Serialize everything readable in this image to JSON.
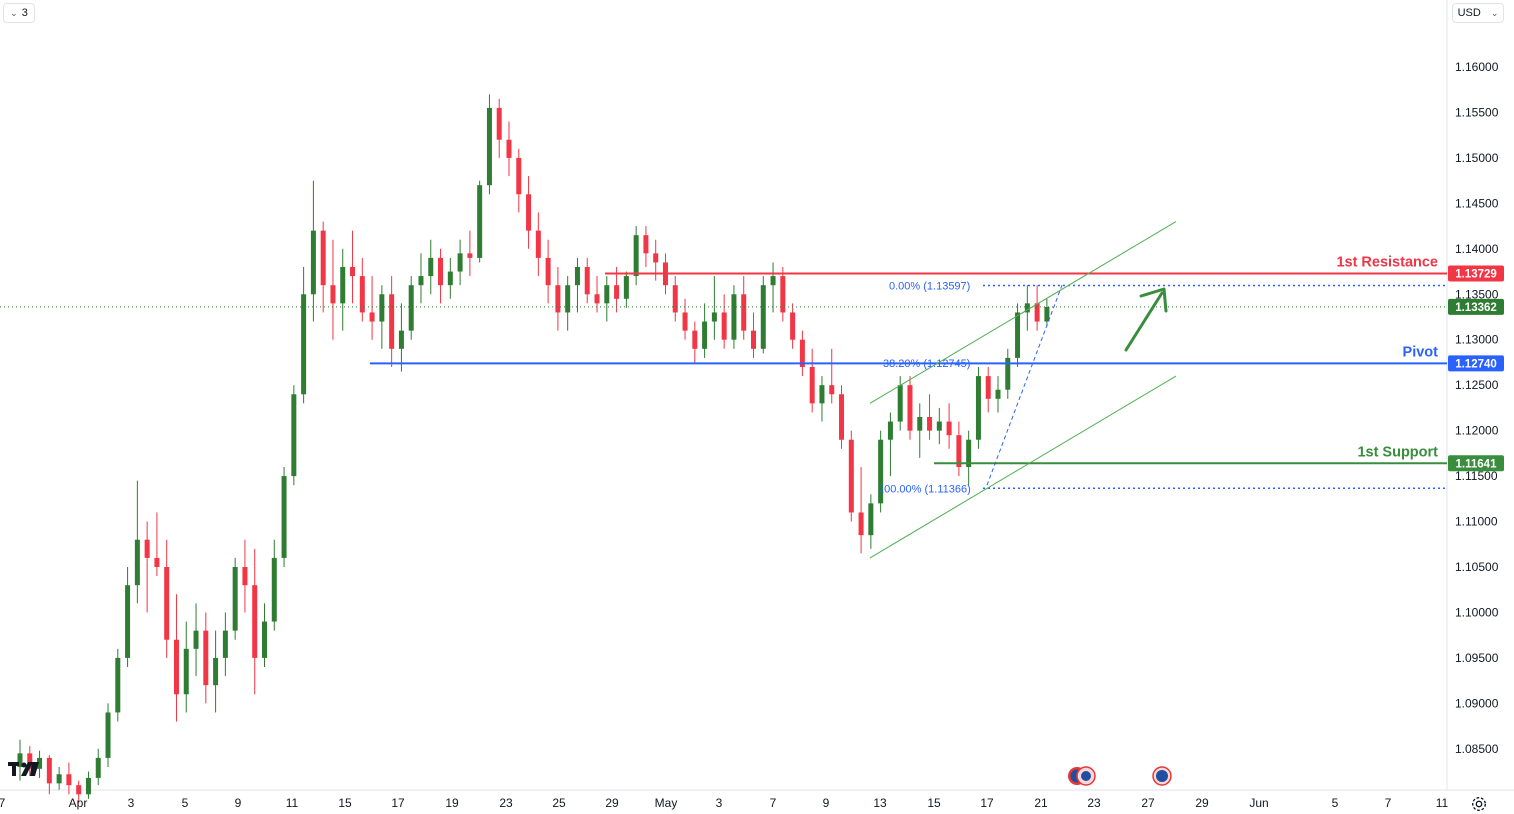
{
  "toolbar": {
    "interval_label": "3",
    "currency_label": "USD"
  },
  "chart_data": {
    "type": "candlestick",
    "title": "",
    "xlabel": "",
    "ylabel": "",
    "ylim": [
      1.08,
      1.165
    ],
    "y_ticks": [
      "1.08500",
      "1.09000",
      "1.09500",
      "1.10000",
      "1.10500",
      "1.11000",
      "1.11500",
      "1.12000",
      "1.12500",
      "1.13000",
      "1.13500",
      "1.14000",
      "1.14500",
      "1.15000",
      "1.15500",
      "1.16000"
    ],
    "x_ticks": [
      "7",
      "Apr",
      "3",
      "5",
      "9",
      "11",
      "15",
      "17",
      "19",
      "23",
      "25",
      "29",
      "May",
      "3",
      "7",
      "9",
      "13",
      "15",
      "17",
      "21",
      "23",
      "27",
      "29",
      "Jun",
      "5",
      "7",
      "11"
    ],
    "current_price": 1.13362,
    "current_price_label": "1.13362",
    "candles": [
      [
        1.083,
        1.086,
        1.0815,
        1.0845
      ],
      [
        1.0845,
        1.0853,
        1.082,
        1.0828
      ],
      [
        1.0828,
        1.0848,
        1.0818,
        1.084
      ],
      [
        1.084,
        1.0843,
        1.08,
        1.0812
      ],
      [
        1.0812,
        1.083,
        1.0805,
        1.0822
      ],
      [
        1.0822,
        1.0835,
        1.08,
        1.081
      ],
      [
        1.081,
        1.0815,
        1.079,
        1.08
      ],
      [
        1.08,
        1.0825,
        1.0795,
        1.0818
      ],
      [
        1.0818,
        1.085,
        1.081,
        1.084
      ],
      [
        1.084,
        1.09,
        1.083,
        1.089
      ],
      [
        1.089,
        1.096,
        1.088,
        1.095
      ],
      [
        1.095,
        1.105,
        1.094,
        1.103
      ],
      [
        1.103,
        1.1145,
        1.101,
        1.108
      ],
      [
        1.108,
        1.11,
        1.1,
        1.106
      ],
      [
        1.106,
        1.111,
        1.104,
        1.105
      ],
      [
        1.105,
        1.108,
        1.095,
        1.097
      ],
      [
        1.097,
        1.102,
        1.088,
        1.091
      ],
      [
        1.091,
        1.099,
        1.089,
        1.096
      ],
      [
        1.096,
        1.101,
        1.093,
        1.098
      ],
      [
        1.098,
        1.1,
        1.09,
        1.092
      ],
      [
        1.092,
        1.098,
        1.089,
        1.095
      ],
      [
        1.095,
        1.1,
        1.093,
        1.098
      ],
      [
        1.098,
        1.106,
        1.097,
        1.105
      ],
      [
        1.105,
        1.108,
        1.1,
        1.103
      ],
      [
        1.103,
        1.107,
        1.091,
        1.095
      ],
      [
        1.095,
        1.101,
        1.094,
        1.099
      ],
      [
        1.099,
        1.108,
        1.098,
        1.106
      ],
      [
        1.106,
        1.116,
        1.105,
        1.115
      ],
      [
        1.115,
        1.125,
        1.114,
        1.124
      ],
      [
        1.124,
        1.138,
        1.123,
        1.135
      ],
      [
        1.135,
        1.1475,
        1.132,
        1.142
      ],
      [
        1.142,
        1.143,
        1.133,
        1.136
      ],
      [
        1.136,
        1.141,
        1.13,
        1.134
      ],
      [
        1.134,
        1.14,
        1.131,
        1.138
      ],
      [
        1.138,
        1.142,
        1.134,
        1.137
      ],
      [
        1.137,
        1.139,
        1.132,
        1.133
      ],
      [
        1.133,
        1.137,
        1.13,
        1.132
      ],
      [
        1.132,
        1.136,
        1.129,
        1.135
      ],
      [
        1.135,
        1.137,
        1.127,
        1.129
      ],
      [
        1.129,
        1.134,
        1.1265,
        1.131
      ],
      [
        1.131,
        1.137,
        1.13,
        1.136
      ],
      [
        1.136,
        1.1395,
        1.134,
        1.137
      ],
      [
        1.137,
        1.141,
        1.135,
        1.139
      ],
      [
        1.139,
        1.14,
        1.134,
        1.136
      ],
      [
        1.136,
        1.139,
        1.1345,
        1.1375
      ],
      [
        1.1375,
        1.141,
        1.136,
        1.1395
      ],
      [
        1.1395,
        1.142,
        1.137,
        1.139
      ],
      [
        1.139,
        1.1475,
        1.1385,
        1.147
      ],
      [
        1.147,
        1.157,
        1.146,
        1.1555
      ],
      [
        1.1555,
        1.1565,
        1.15,
        1.152
      ],
      [
        1.152,
        1.154,
        1.148,
        1.15
      ],
      [
        1.15,
        1.151,
        1.144,
        1.146
      ],
      [
        1.146,
        1.148,
        1.14,
        1.142
      ],
      [
        1.142,
        1.144,
        1.137,
        1.139
      ],
      [
        1.139,
        1.141,
        1.134,
        1.136
      ],
      [
        1.136,
        1.138,
        1.131,
        1.133
      ],
      [
        1.133,
        1.137,
        1.131,
        1.136
      ],
      [
        1.136,
        1.139,
        1.133,
        1.138
      ],
      [
        1.138,
        1.139,
        1.134,
        1.135
      ],
      [
        1.135,
        1.137,
        1.133,
        1.134
      ],
      [
        1.134,
        1.137,
        1.132,
        1.136
      ],
      [
        1.136,
        1.138,
        1.133,
        1.1345
      ],
      [
        1.1345,
        1.1375,
        1.1335,
        1.137
      ],
      [
        1.137,
        1.1425,
        1.136,
        1.1415
      ],
      [
        1.1415,
        1.1425,
        1.138,
        1.1395
      ],
      [
        1.1395,
        1.141,
        1.1365,
        1.1385
      ],
      [
        1.1385,
        1.1395,
        1.135,
        1.136
      ],
      [
        1.136,
        1.137,
        1.132,
        1.133
      ],
      [
        1.133,
        1.1345,
        1.13,
        1.131
      ],
      [
        1.131,
        1.132,
        1.1275,
        1.129
      ],
      [
        1.129,
        1.134,
        1.128,
        1.132
      ],
      [
        1.132,
        1.137,
        1.13,
        1.133
      ],
      [
        1.133,
        1.135,
        1.129,
        1.13
      ],
      [
        1.13,
        1.136,
        1.129,
        1.135
      ],
      [
        1.135,
        1.137,
        1.13,
        1.131
      ],
      [
        1.131,
        1.133,
        1.128,
        1.129
      ],
      [
        1.129,
        1.137,
        1.1285,
        1.136
      ],
      [
        1.136,
        1.1385,
        1.133,
        1.137
      ],
      [
        1.137,
        1.138,
        1.132,
        1.133
      ],
      [
        1.133,
        1.134,
        1.129,
        1.13
      ],
      [
        1.13,
        1.131,
        1.126,
        1.127
      ],
      [
        1.127,
        1.129,
        1.122,
        1.123
      ],
      [
        1.123,
        1.126,
        1.121,
        1.125
      ],
      [
        1.125,
        1.129,
        1.123,
        1.124
      ],
      [
        1.124,
        1.125,
        1.118,
        1.119
      ],
      [
        1.119,
        1.12,
        1.11,
        1.111
      ],
      [
        1.111,
        1.116,
        1.1065,
        1.1085
      ],
      [
        1.1085,
        1.113,
        1.107,
        1.112
      ],
      [
        1.112,
        1.12,
        1.111,
        1.119
      ],
      [
        1.119,
        1.122,
        1.115,
        1.121
      ],
      [
        1.121,
        1.126,
        1.12,
        1.125
      ],
      [
        1.125,
        1.126,
        1.119,
        1.12
      ],
      [
        1.12,
        1.123,
        1.117,
        1.1215
      ],
      [
        1.1215,
        1.124,
        1.119,
        1.12
      ],
      [
        1.12,
        1.1225,
        1.1185,
        1.121
      ],
      [
        1.121,
        1.123,
        1.118,
        1.1195
      ],
      [
        1.1195,
        1.121,
        1.115,
        1.116
      ],
      [
        1.116,
        1.12,
        1.114,
        1.119
      ],
      [
        1.119,
        1.127,
        1.118,
        1.126
      ],
      [
        1.126,
        1.127,
        1.122,
        1.1235
      ],
      [
        1.1235,
        1.126,
        1.122,
        1.1245
      ],
      [
        1.1245,
        1.129,
        1.1235,
        1.128
      ],
      [
        1.128,
        1.134,
        1.127,
        1.133
      ],
      [
        1.133,
        1.136,
        1.131,
        1.134
      ],
      [
        1.134,
        1.136,
        1.131,
        1.132
      ],
      [
        1.132,
        1.1345,
        1.1315,
        1.1336
      ]
    ],
    "levels": [
      {
        "name": "1st Resistance",
        "value": 1.13729,
        "label": "1.13729",
        "color": "#f23645"
      },
      {
        "name": "Pivot",
        "value": 1.1274,
        "label": "1.12740",
        "color": "#2962ff"
      },
      {
        "name": "1st Support",
        "value": 1.11641,
        "label": "1.11641",
        "color": "#388e3c"
      }
    ],
    "fibonacci": [
      {
        "label": "0.00% (1.13597)",
        "value": 1.13597
      },
      {
        "label": "38.20% (1.12745)",
        "value": 1.12745
      },
      {
        "label": "100.00% (1.11366)",
        "value": 1.11366
      }
    ],
    "channel": {
      "upper": [
        [
          1.123,
          1.143
        ]
      ],
      "lower": [
        [
          1.106,
          1.126
        ]
      ]
    },
    "colors": {
      "up": "#089981",
      "up_body": "#2e7d32",
      "down": "#f23645",
      "channel": "#4caf50",
      "arrow": "#388e3c"
    }
  }
}
